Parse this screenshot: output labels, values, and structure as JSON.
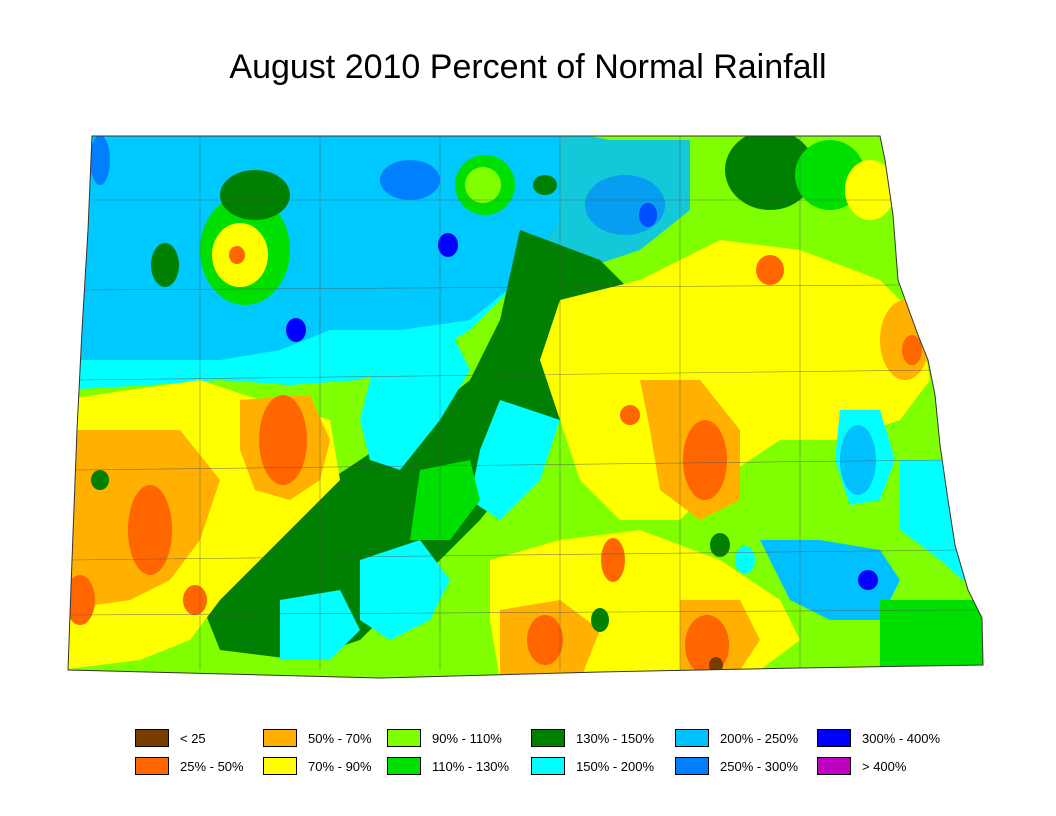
{
  "title": "August 2010 Percent of Normal Rainfall",
  "legend": [
    {
      "label": "< 25",
      "color": "#7a3b00"
    },
    {
      "label": "25% - 50%",
      "color": "#ff6600"
    },
    {
      "label": "50% - 70%",
      "color": "#ffb000"
    },
    {
      "label": "70% - 90%",
      "color": "#ffff00"
    },
    {
      "label": "90% - 110%",
      "color": "#80ff00"
    },
    {
      "label": "110% - 130%",
      "color": "#00e000"
    },
    {
      "label": "130% - 150%",
      "color": "#008000"
    },
    {
      "label": "150% - 200%",
      "color": "#00ffff"
    },
    {
      "label": "200% - 250%",
      "color": "#00c0ff"
    },
    {
      "label": "250% - 300%",
      "color": "#0080ff"
    },
    {
      "label": "300% - 400%",
      "color": "#0000ff"
    },
    {
      "label": "> 400%",
      "color": "#c000c0"
    }
  ]
}
